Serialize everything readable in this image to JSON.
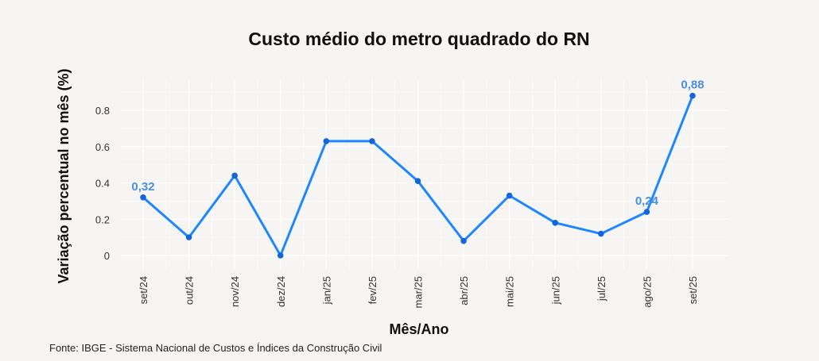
{
  "chart_data": {
    "type": "line",
    "title": "Custo médio do metro quadrado do RN",
    "xlabel": "Mês/Ano",
    "ylabel": "Variação percentual no mês (%)",
    "categories": [
      "set/24",
      "out/24",
      "nov/24",
      "dez/24",
      "jan/25",
      "fev/25",
      "mar/25",
      "abr/25",
      "mai/25",
      "jun/25",
      "jul/25",
      "ago/25",
      "set/25"
    ],
    "series": [
      {
        "name": "Variação",
        "values": [
          0.32,
          0.1,
          0.44,
          0.0,
          0.63,
          0.63,
          0.41,
          0.08,
          0.33,
          0.18,
          0.12,
          0.24,
          0.88
        ],
        "color": "#1e86ff"
      }
    ],
    "data_labels": [
      {
        "index": 0,
        "text": "0,32"
      },
      {
        "index": 11,
        "text": "0,24"
      },
      {
        "index": 12,
        "text": "0,88"
      }
    ],
    "yticks": [
      {
        "value": 0,
        "label": "0"
      },
      {
        "value": 0.2,
        "label": "0.2"
      },
      {
        "value": 0.4,
        "label": "0.4"
      },
      {
        "value": 0.6,
        "label": "0.6"
      },
      {
        "value": 0.8,
        "label": "0.8"
      }
    ],
    "ylim": [
      -0.08,
      0.97
    ],
    "grid": true,
    "source": "Fonte: IBGE - Sistema Nacional de Custos e Índices da Construção Civil"
  }
}
